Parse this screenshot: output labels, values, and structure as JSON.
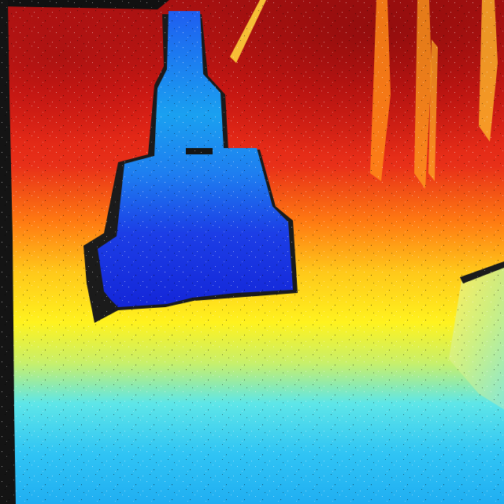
{
  "image": {
    "kind": "depth-map",
    "colormap": "jet",
    "palette": {
      "far": "#7a0a0a",
      "red": "#e8201a",
      "orange": "#ff8c1a",
      "yellow": "#ffe81a",
      "cyan": "#4ee8f0",
      "sky": "#2aa8f0",
      "blue": "#1e44e6",
      "deep-blue": "#1428d8",
      "invalid": "#1a1a1a"
    }
  }
}
